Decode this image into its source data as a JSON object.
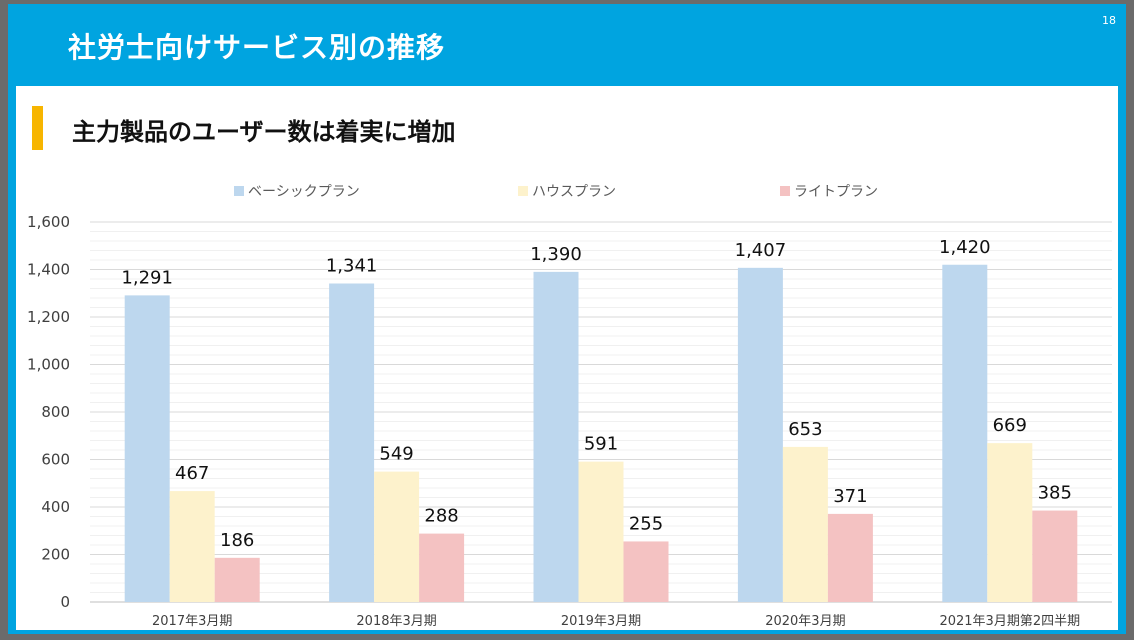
{
  "slide": {
    "title": "社労士向けサービス別の推移",
    "page_number": "18",
    "subtitle": "主力製品のユーザー数は着実に増加"
  },
  "colors": {
    "header": "#00a4e0",
    "accent": "#f7b500",
    "series": [
      "#bdd7ee",
      "#fdf2cc",
      "#f4c2c2"
    ]
  },
  "chart_data": {
    "type": "bar",
    "categories": [
      "2017年3月期",
      "2018年3月期",
      "2019年3月期",
      "2020年3月期",
      "2021年3月期第2四半期"
    ],
    "series": [
      {
        "name": "ベーシックプラン",
        "values": [
          1291,
          1341,
          1390,
          1407,
          1420
        ],
        "labels": [
          "1,291",
          "1,341",
          "1,390",
          "1,407",
          "1,420"
        ]
      },
      {
        "name": "ハウスプラン",
        "values": [
          467,
          549,
          591,
          653,
          669
        ],
        "labels": [
          "467",
          "549",
          "591",
          "653",
          "669"
        ]
      },
      {
        "name": "ライトプラン",
        "values": [
          186,
          288,
          255,
          371,
          385
        ],
        "labels": [
          "186",
          "288",
          "255",
          "371",
          "385"
        ]
      }
    ],
    "ylim": [
      0,
      1600
    ],
    "yticks": [
      0,
      200,
      400,
      600,
      800,
      1000,
      1200,
      1400,
      1600
    ],
    "ytick_labels": [
      "0",
      "200",
      "400",
      "600",
      "800",
      "1,000",
      "1,200",
      "1,400",
      "1,600"
    ],
    "legend_position": "top",
    "grid": true
  }
}
